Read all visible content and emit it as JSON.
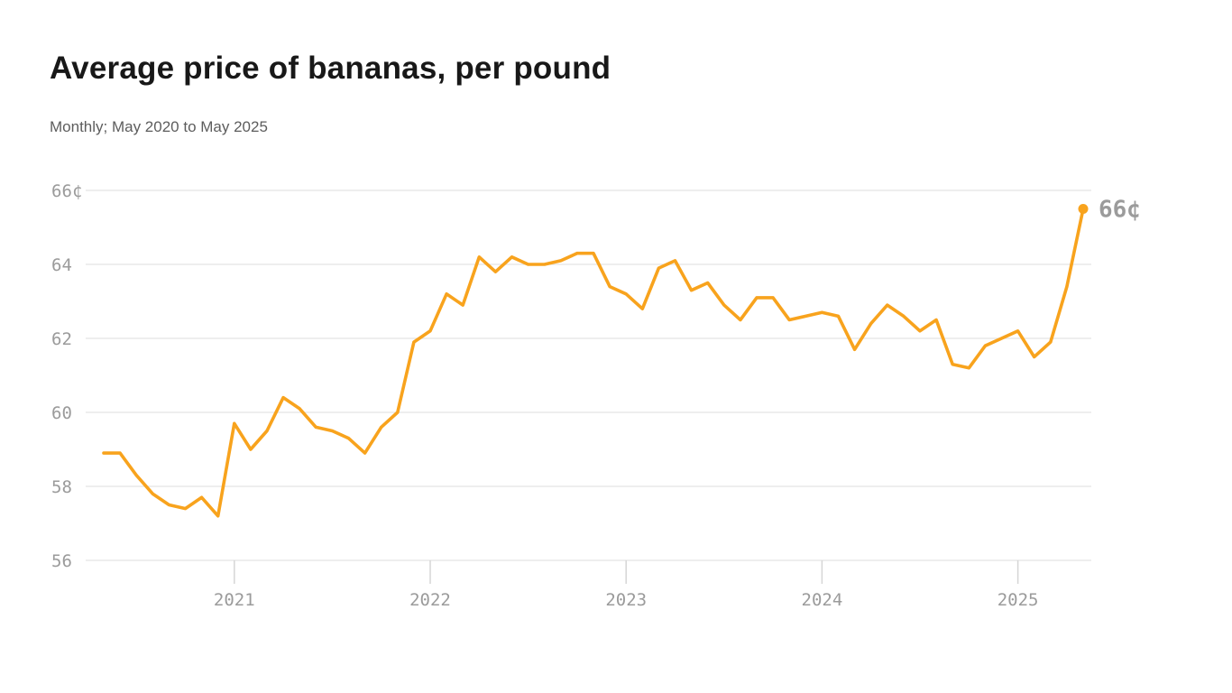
{
  "header": {
    "title": "Average price of bananas, per pound",
    "subtitle": "Monthly; May 2020 to May 2025"
  },
  "chart_data": {
    "type": "line",
    "title": "Average price of bananas, per pound",
    "subtitle": "Monthly; May 2020 to May 2025",
    "series_name": "Average price of bananas (cents per pound)",
    "unit": "cents per pound",
    "x": [
      "2020-05",
      "2020-06",
      "2020-07",
      "2020-08",
      "2020-09",
      "2020-10",
      "2020-11",
      "2020-12",
      "2021-01",
      "2021-02",
      "2021-03",
      "2021-04",
      "2021-05",
      "2021-06",
      "2021-07",
      "2021-08",
      "2021-09",
      "2021-10",
      "2021-11",
      "2021-12",
      "2022-01",
      "2022-02",
      "2022-03",
      "2022-04",
      "2022-05",
      "2022-06",
      "2022-07",
      "2022-08",
      "2022-09",
      "2022-10",
      "2022-11",
      "2022-12",
      "2023-01",
      "2023-02",
      "2023-03",
      "2023-04",
      "2023-05",
      "2023-06",
      "2023-07",
      "2023-08",
      "2023-09",
      "2023-10",
      "2023-11",
      "2023-12",
      "2024-01",
      "2024-02",
      "2024-03",
      "2024-04",
      "2024-05",
      "2024-06",
      "2024-07",
      "2024-08",
      "2024-09",
      "2024-10",
      "2024-11",
      "2024-12",
      "2025-01",
      "2025-02",
      "2025-03",
      "2025-04",
      "2025-05"
    ],
    "values": [
      58.9,
      58.9,
      58.3,
      57.8,
      57.5,
      57.4,
      57.7,
      57.2,
      59.7,
      59.0,
      59.5,
      60.4,
      60.1,
      59.6,
      59.5,
      59.3,
      58.9,
      59.6,
      60.0,
      61.9,
      62.2,
      63.2,
      62.9,
      64.2,
      63.8,
      64.2,
      64.0,
      64.0,
      64.1,
      64.3,
      64.3,
      63.4,
      63.2,
      62.8,
      63.9,
      64.1,
      63.3,
      63.5,
      62.9,
      62.5,
      63.1,
      63.1,
      62.5,
      62.6,
      62.7,
      62.6,
      61.7,
      62.4,
      62.9,
      62.6,
      62.2,
      62.5,
      61.3,
      61.2,
      61.8,
      62.0,
      62.2,
      61.5,
      61.9,
      63.4,
      65.5
    ],
    "ylim": [
      56,
      66
    ],
    "yticks": [
      {
        "value": 56,
        "label": "56"
      },
      {
        "value": 58,
        "label": "58"
      },
      {
        "value": 60,
        "label": "60"
      },
      {
        "value": 62,
        "label": "62"
      },
      {
        "value": 64,
        "label": "64"
      },
      {
        "value": 66,
        "label": "66¢"
      }
    ],
    "xticks": [
      {
        "x": "2021-01",
        "label": "2021"
      },
      {
        "x": "2022-01",
        "label": "2022"
      },
      {
        "x": "2023-01",
        "label": "2023"
      },
      {
        "x": "2024-01",
        "label": "2024"
      },
      {
        "x": "2025-01",
        "label": "2025"
      }
    ],
    "grid": "horizontal",
    "legend": "none",
    "line_color": "#F8A31D",
    "axis_label_color": "#9b9b9b",
    "gridline_color": "#e4e4e4",
    "end_point": {
      "x": "2025-05",
      "value": 65.5,
      "label": "66¢"
    }
  }
}
